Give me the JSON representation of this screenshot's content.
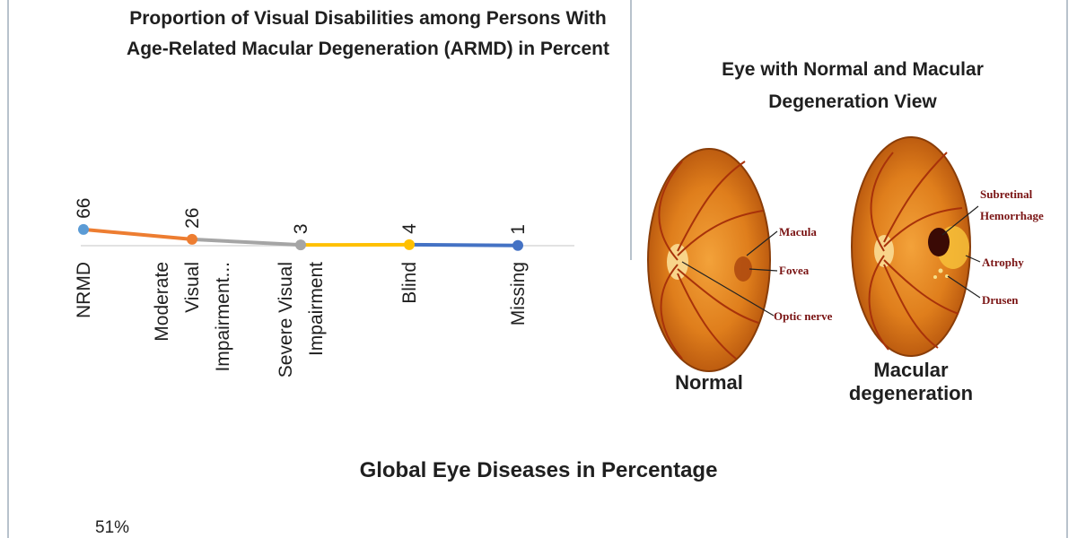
{
  "chart_data": [
    {
      "type": "line",
      "title_lines": [
        "Proportion of Visual Disabilities among Persons With",
        "Age-Related Macular Degeneration (ARMD) in Percent"
      ],
      "categories": [
        [
          "NRMD"
        ],
        [
          "Moderate",
          "Visual",
          "Impairment..."
        ],
        [
          "Severe Visual",
          "Impairment"
        ],
        [
          "Blind"
        ],
        [
          "Missing"
        ]
      ],
      "values": [
        66,
        26,
        3,
        4,
        1
      ],
      "segment_colors": [
        "#ed7d31",
        "#a5a5a5",
        "#ffc000",
        "#4472c4"
      ],
      "point_colors": [
        "#5b9bd5",
        "#ed7d31",
        "#a5a5a5",
        "#ffc000",
        "#4472c4"
      ],
      "ylim": [
        0,
        1000
      ],
      "grid": false,
      "legend": "none"
    },
    {
      "type": "pie",
      "title": "Global Eye Diseases in Percentage",
      "data_labels": [
        "51%"
      ]
    }
  ],
  "diagram": {
    "title_lines": [
      "Eye with Normal and Macular",
      "Degeneration View"
    ],
    "normal_caption": "Normal",
    "degenerated_caption_lines": [
      "Macular",
      "degeneration"
    ],
    "normal_annotations": [
      "Macula",
      "Fovea",
      "Optic nerve"
    ],
    "degenerated_annotations": [
      "Subretinal",
      "Hemorrhage",
      "Atrophy",
      "Drusen"
    ]
  }
}
